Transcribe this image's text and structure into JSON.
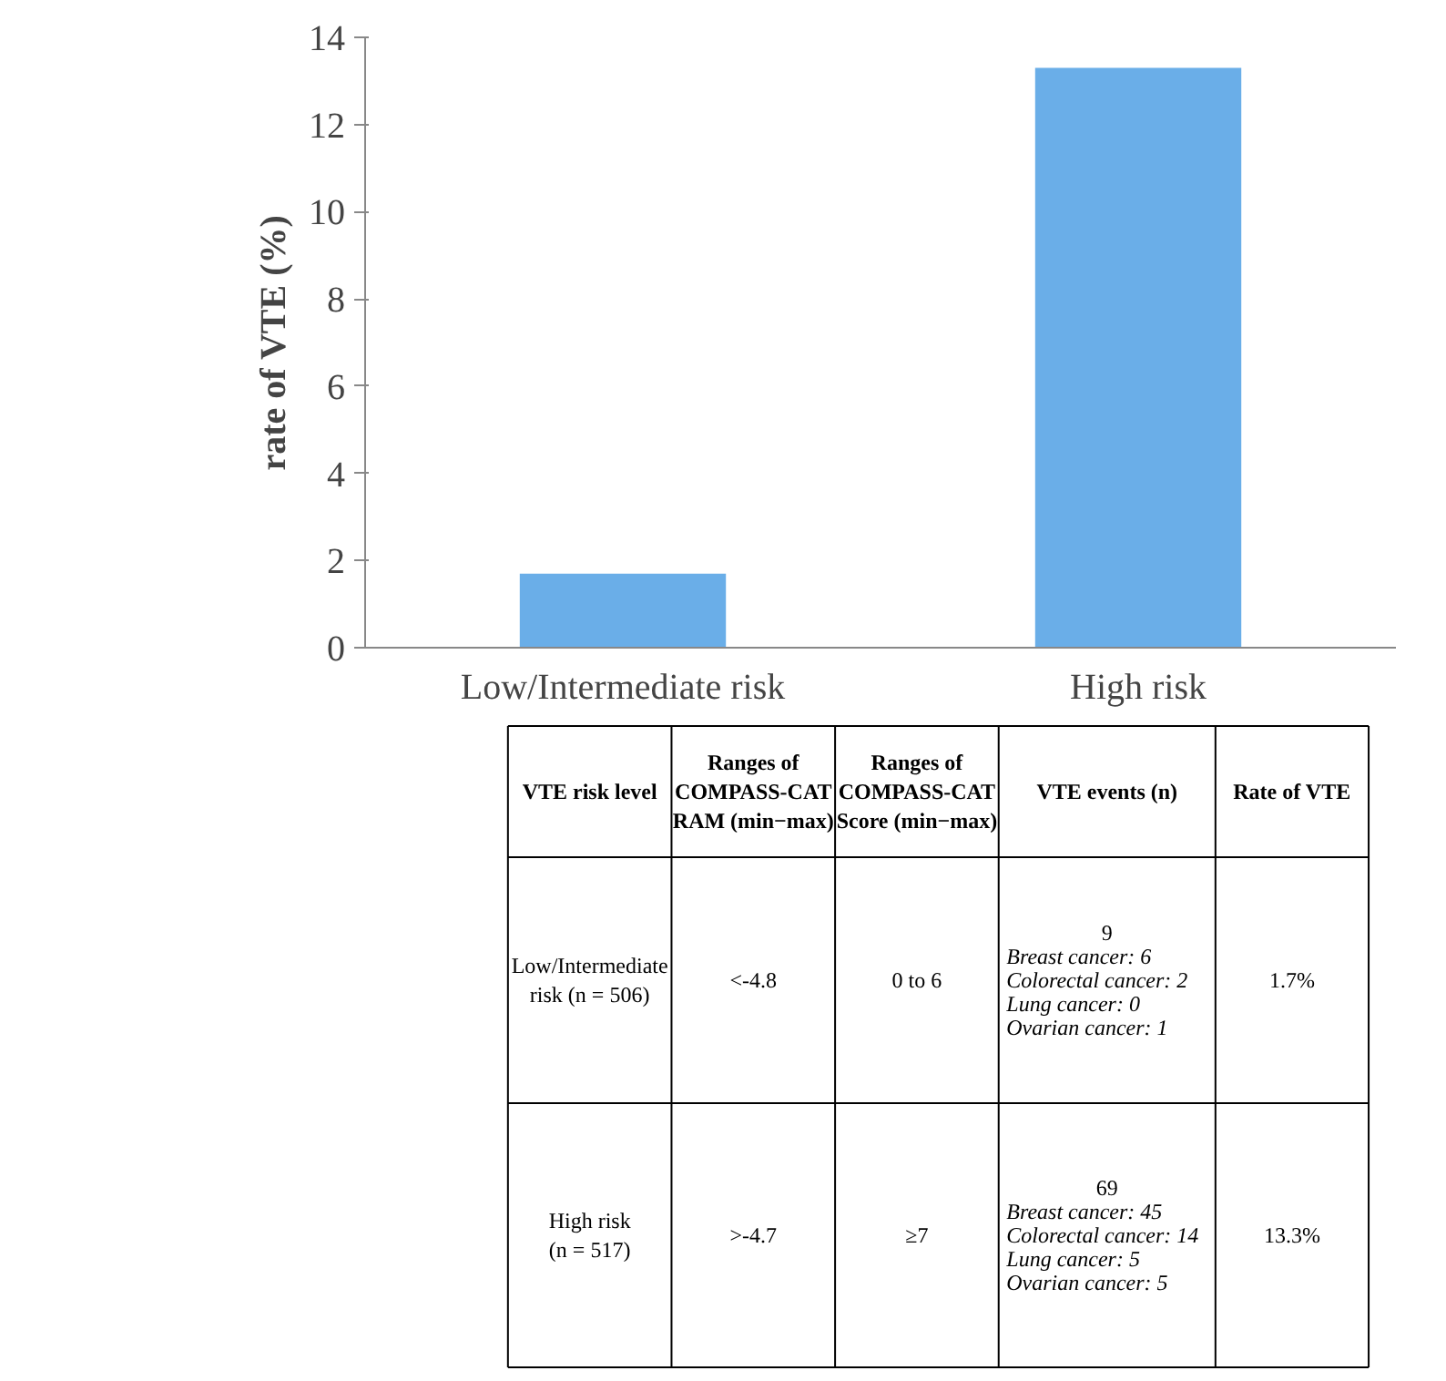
{
  "chart_data": {
    "type": "bar",
    "ylabel": "rate of VTE (%)",
    "categories": [
      "Low/Intermediate risk",
      "High risk"
    ],
    "values": [
      1.7,
      13.3
    ],
    "color": "#6aaee8",
    "ylim": [
      0,
      14
    ],
    "yticks": [
      0,
      2,
      4,
      6,
      8,
      10,
      12,
      14
    ],
    "grid": false,
    "annotations": [
      "VTE risk level",
      "Ranges of\nCOMPASS-CAT\nRAM (min−max)",
      "Ranges of\nCOMPASS-CAT\nScore (min−max)",
      "VTE events (n)",
      "Rate of VTE",
      "Low/Intermediate\nrisk (n = 506)",
      "<-4.8",
      "0 to 6",
      "9\nBreast cancer: 6\nColorectal cancer: 2\nLung cancer: 0\nOvarian cancer: 1",
      "1.7%",
      "High risk\n(n = 517)",
      ">-4.7",
      "≥7",
      "69\nBreast cancer: 45\nColorectal cancer: 14\nLung cancer: 5\nOvarian cancer: 5",
      "13.3%"
    ]
  }
}
